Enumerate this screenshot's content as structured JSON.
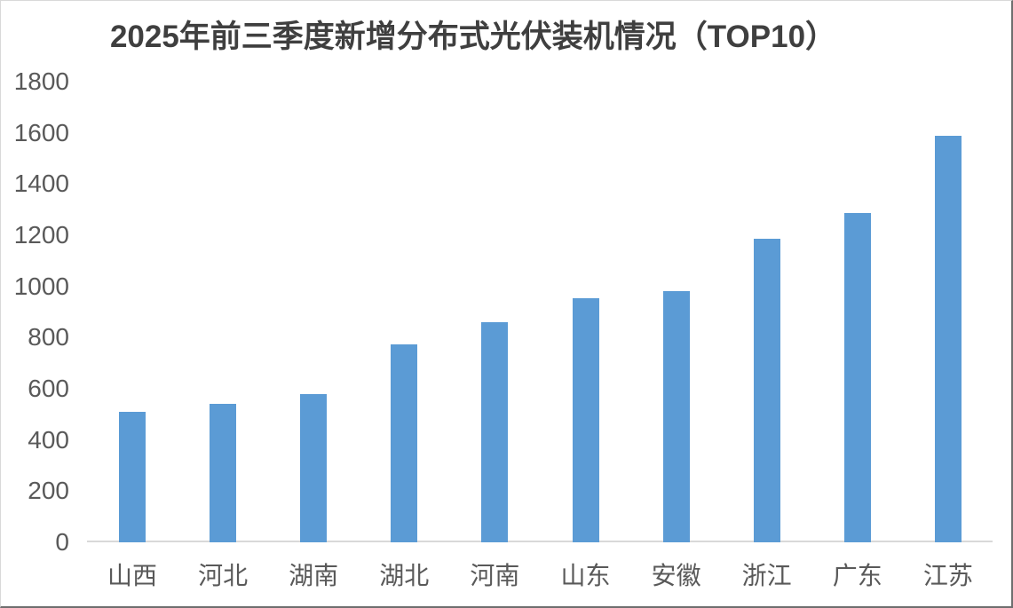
{
  "chart_data": {
    "type": "bar",
    "title": "2025年前三季度新增分布式光伏装机情况（TOP10）",
    "categories": [
      "山西",
      "河北",
      "湖南",
      "湖北",
      "河南",
      "山东",
      "安徽",
      "浙江",
      "广东",
      "江苏"
    ],
    "values": [
      510,
      540,
      580,
      775,
      860,
      955,
      980,
      1185,
      1285,
      1590
    ],
    "xlabel": "",
    "ylabel": "",
    "ylim": [
      0,
      1800
    ],
    "yticks": [
      0,
      200,
      400,
      600,
      800,
      1000,
      1200,
      1400,
      1600,
      1800
    ],
    "grid": false,
    "legend_position": "none",
    "bar_color": "#5B9BD5",
    "axis_line_color": "#D9D9D9",
    "tick_label_color": "#595959",
    "title_color": "#3F3F3F"
  }
}
